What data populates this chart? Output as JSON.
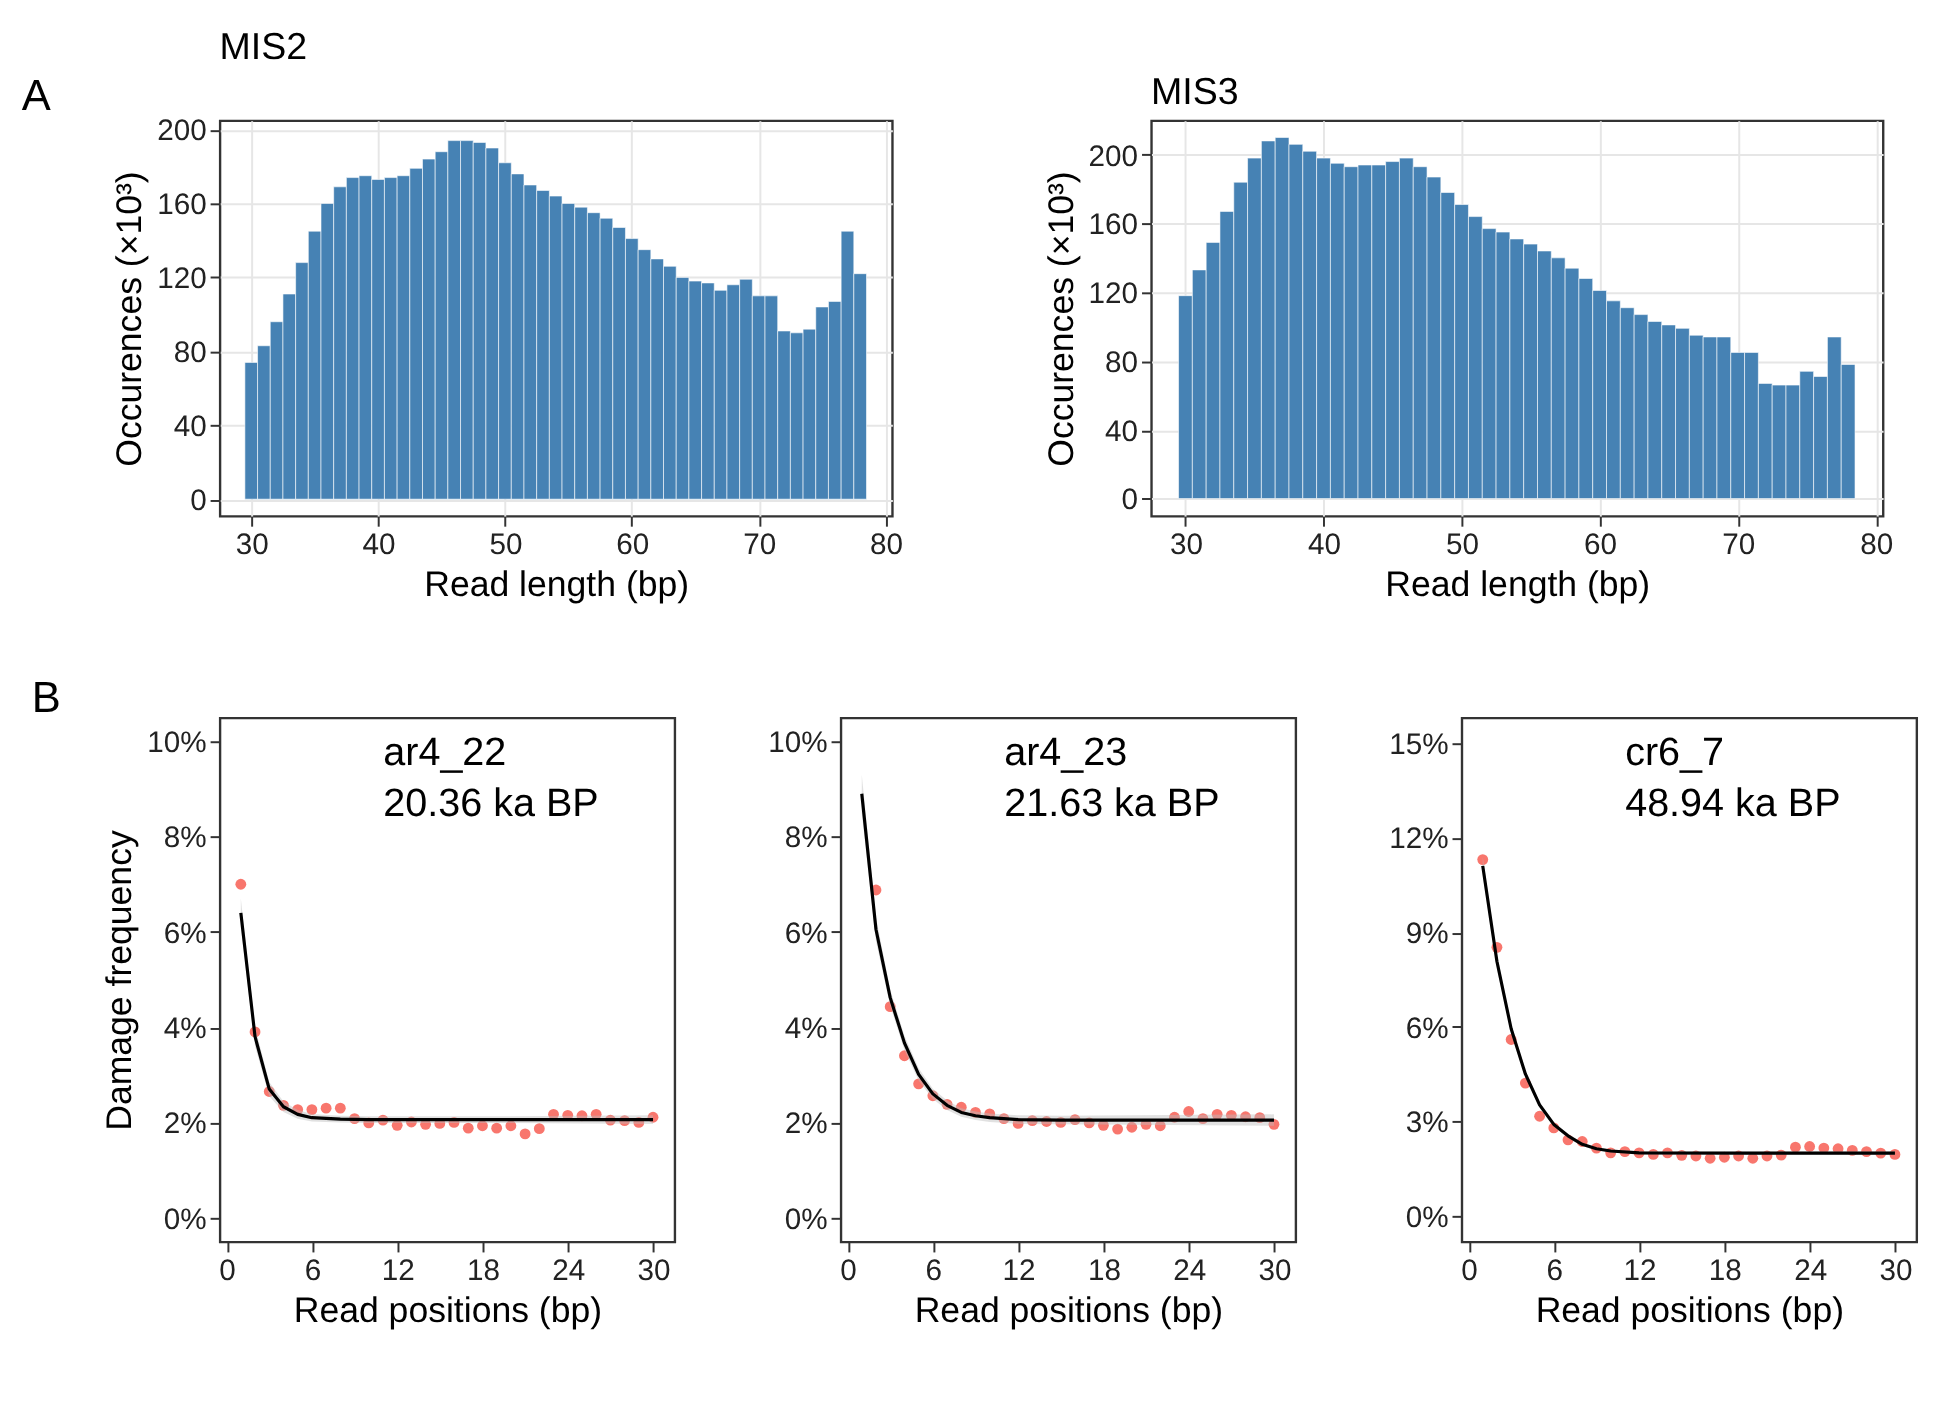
{
  "chart_data": [
    {
      "type": "histogram",
      "title": "MIS2",
      "xlabel": "Read length (bp)",
      "ylabel": "Occurences (×10³)",
      "annotations": [
        "A"
      ],
      "color": "#4682b4",
      "bins": [
        29.5,
        30.5,
        31.5,
        32.5,
        33.5,
        34.5,
        35.5,
        36.5,
        37.5,
        38.5,
        39.5,
        40.5,
        41.5,
        42.5,
        43.5,
        44.5,
        45.5,
        46.5,
        47.5,
        48.5,
        49.5,
        50.5,
        51.5,
        52.5,
        53.5,
        54.5,
        55.5,
        56.5,
        57.5,
        58.5,
        59.5,
        60.5,
        61.5,
        62.5,
        63.5,
        64.5,
        65.5,
        66.5,
        67.5,
        68.5,
        69.5,
        70.5,
        71.5,
        72.5,
        73.5,
        74.5,
        75.5,
        76.5,
        77.5,
        78.5
      ],
      "values": [
        74,
        83,
        96,
        111,
        128,
        145,
        160,
        169,
        174,
        175,
        173,
        174,
        175,
        179,
        184,
        188,
        194,
        194,
        193,
        190,
        182,
        176,
        170,
        167,
        164,
        160,
        158,
        155,
        152,
        147,
        141,
        135,
        130,
        126,
        120,
        118,
        117,
        113,
        116,
        119,
        110,
        110,
        91,
        90,
        92,
        104,
        107,
        145,
        122
      ],
      "xlim": [
        27.5,
        80.5
      ],
      "xticks": [
        30,
        40,
        50,
        60,
        70,
        80
      ],
      "ylim": [
        -9,
        205
      ],
      "yticks": [
        0,
        40,
        80,
        120,
        160,
        200
      ],
      "grid": true
    },
    {
      "type": "histogram",
      "title": "MIS3",
      "xlabel": "Read length (bp)",
      "ylabel": "Occurences (×10³)",
      "color": "#4682b4",
      "bins": [
        29.5,
        30.5,
        31.5,
        32.5,
        33.5,
        34.5,
        35.5,
        36.5,
        37.5,
        38.5,
        39.5,
        40.5,
        41.5,
        42.5,
        43.5,
        44.5,
        45.5,
        46.5,
        47.5,
        48.5,
        49.5,
        50.5,
        51.5,
        52.5,
        53.5,
        54.5,
        55.5,
        56.5,
        57.5,
        58.5,
        59.5,
        60.5,
        61.5,
        62.5,
        63.5,
        64.5,
        65.5,
        66.5,
        67.5,
        68.5,
        69.5,
        70.5,
        71.5,
        72.5,
        73.5,
        74.5,
        75.5,
        76.5,
        77.5,
        78.5
      ],
      "values": [
        118,
        133,
        149,
        167,
        184,
        198,
        208,
        210,
        206,
        202,
        198,
        195,
        193,
        194,
        194,
        196,
        198,
        193,
        187,
        178,
        171,
        164,
        157,
        155,
        151,
        148,
        144,
        140,
        134,
        128,
        121,
        115,
        111,
        107,
        103,
        101,
        99,
        95,
        94,
        94,
        85,
        85,
        67,
        66,
        66,
        74,
        71,
        94,
        78
      ],
      "xlim": [
        27.5,
        80.5
      ],
      "xticks": [
        30,
        40,
        50,
        60,
        70,
        80
      ],
      "ylim": [
        -10,
        220
      ],
      "yticks": [
        0,
        40,
        80,
        120,
        160,
        200
      ],
      "grid": true
    },
    {
      "type": "scatter",
      "xlabel": "Read positions (bp)",
      "ylabel": "Damage frequency",
      "annotations": [
        "B",
        "ar4_22",
        "20.36 ka BP"
      ],
      "grid": false,
      "series": [
        {
          "color": "#f8766d",
          "marker": "circle",
          "x": [
            1,
            2,
            3,
            4,
            5,
            6,
            7,
            8,
            9,
            10,
            11,
            12,
            13,
            14,
            15,
            16,
            17,
            18,
            19,
            20,
            21,
            22,
            23,
            24,
            25,
            26,
            27,
            28,
            29,
            30
          ],
          "values": [
            7.0,
            3.9,
            2.65,
            2.36,
            2.27,
            2.27,
            2.3,
            2.3,
            2.08,
            1.99,
            2.05,
            1.94,
            2.01,
            1.96,
            1.98,
            2.0,
            1.88,
            1.93,
            1.88,
            1.93,
            1.76,
            1.87,
            2.17,
            2.15,
            2.14,
            2.17,
            2.05,
            2.04,
            2.0,
            2.11
          ]
        },
        {
          "type": "line",
          "color": "#000000",
          "line_style": "solid",
          "x": [
            1,
            2,
            3,
            4,
            5,
            6,
            8,
            10,
            15,
            20,
            25,
            30
          ],
          "values": [
            6.4,
            3.8,
            2.7,
            2.33,
            2.17,
            2.1,
            2.07,
            2.06,
            2.06,
            2.06,
            2.06,
            2.06
          ],
          "lower": [
            6.1,
            3.6,
            2.55,
            2.22,
            2.08,
            2.02,
            2.0,
            1.99,
            1.99,
            1.99,
            1.98,
            1.97
          ],
          "upper": [
            6.7,
            4.0,
            2.85,
            2.44,
            2.26,
            2.18,
            2.14,
            2.13,
            2.13,
            2.13,
            2.14,
            2.15
          ]
        }
      ],
      "xlim": [
        -0.5,
        31.5
      ],
      "xticks": [
        0,
        6,
        12,
        18,
        24,
        30
      ],
      "ylim": [
        -0.5,
        10.5
      ],
      "yticks": [
        {
          "value": 0,
          "label": "0%"
        },
        {
          "value": 2,
          "label": "2%"
        },
        {
          "value": 4,
          "label": "4%"
        },
        {
          "value": 6,
          "label": "6%"
        },
        {
          "value": 8,
          "label": "8%"
        },
        {
          "value": 10,
          "label": "10%"
        }
      ]
    },
    {
      "type": "scatter",
      "xlabel": "Read positions (bp)",
      "annotations": [
        "ar4_23",
        "21.63 ka BP"
      ],
      "grid": false,
      "series": [
        {
          "color": "#f8766d",
          "marker": "circle",
          "x": [
            2,
            3,
            4,
            5,
            6,
            7,
            8,
            9,
            10,
            11,
            12,
            13,
            14,
            15,
            16,
            17,
            18,
            19,
            20,
            21,
            22,
            23,
            24,
            25,
            26,
            27,
            28,
            29,
            30
          ],
          "values": [
            6.88,
            4.43,
            3.4,
            2.81,
            2.56,
            2.38,
            2.32,
            2.21,
            2.18,
            2.08,
            1.98,
            2.04,
            2.02,
            2.0,
            2.06,
            1.99,
            1.94,
            1.86,
            1.9,
            1.96,
            1.93,
            2.11,
            2.23,
            2.08,
            2.17,
            2.15,
            2.12,
            2.1,
            1.96
          ]
        },
        {
          "type": "line",
          "color": "#000000",
          "line_style": "solid",
          "x": [
            1,
            2,
            3,
            4,
            5,
            6,
            7,
            8,
            9,
            10,
            12,
            15,
            20,
            25,
            30
          ],
          "values": [
            8.9,
            6.05,
            4.62,
            3.67,
            3.01,
            2.6,
            2.36,
            2.21,
            2.14,
            2.1,
            2.06,
            2.05,
            2.05,
            2.05,
            2.05
          ],
          "lower": [
            8.5,
            5.8,
            4.45,
            3.52,
            2.88,
            2.49,
            2.26,
            2.12,
            2.05,
            2.01,
            1.97,
            1.96,
            1.95,
            1.94,
            1.93
          ],
          "upper": [
            9.3,
            6.3,
            4.79,
            3.82,
            3.14,
            2.71,
            2.46,
            2.3,
            2.23,
            2.19,
            2.15,
            2.14,
            2.15,
            2.16,
            2.17
          ]
        }
      ],
      "xlim": [
        -0.5,
        31.5
      ],
      "xticks": [
        0,
        6,
        12,
        18,
        24,
        30
      ],
      "ylim": [
        -0.5,
        10.5
      ],
      "yticks": [
        {
          "value": 0,
          "label": "0%"
        },
        {
          "value": 2,
          "label": "2%"
        },
        {
          "value": 4,
          "label": "4%"
        },
        {
          "value": 6,
          "label": "6%"
        },
        {
          "value": 8,
          "label": "8%"
        },
        {
          "value": 10,
          "label": "10%"
        }
      ]
    },
    {
      "type": "scatter",
      "xlabel": "Read positions (bp)",
      "annotations": [
        "cr6_7",
        "48.94 ka BP"
      ],
      "grid": false,
      "series": [
        {
          "color": "#f8766d",
          "marker": "circle",
          "x": [
            1,
            2,
            3,
            4,
            5,
            6,
            7,
            8,
            9,
            10,
            11,
            12,
            13,
            14,
            15,
            16,
            17,
            18,
            19,
            20,
            21,
            22,
            23,
            24,
            25,
            26,
            27,
            28,
            29,
            30
          ],
          "values": [
            11.3,
            8.52,
            5.6,
            4.22,
            3.17,
            2.8,
            2.42,
            2.37,
            2.16,
            2.01,
            2.05,
            2.01,
            1.96,
            2.01,
            1.93,
            1.91,
            1.84,
            1.87,
            1.91,
            1.84,
            1.91,
            1.94,
            2.19,
            2.21,
            2.16,
            2.14,
            2.09,
            2.05,
            2.0,
            1.96
          ]
        },
        {
          "type": "line",
          "color": "#000000",
          "line_style": "solid",
          "x": [
            1,
            2,
            3,
            4,
            5,
            6,
            7,
            8,
            9,
            10,
            12,
            20,
            30
          ],
          "values": [
            11.1,
            8.07,
            5.94,
            4.51,
            3.53,
            2.91,
            2.55,
            2.28,
            2.14,
            2.07,
            2.01,
            2.0,
            2.0
          ],
          "lower": [
            10.8,
            7.85,
            5.8,
            4.4,
            3.45,
            2.84,
            2.49,
            2.23,
            2.09,
            2.02,
            1.96,
            1.95,
            1.94
          ],
          "upper": [
            11.4,
            8.3,
            6.08,
            4.62,
            3.61,
            2.98,
            2.61,
            2.33,
            2.19,
            2.12,
            2.06,
            2.05,
            2.06
          ]
        }
      ],
      "xlim": [
        -0.5,
        31.5
      ],
      "xticks": [
        0,
        6,
        12,
        18,
        24,
        30
      ],
      "ylim": [
        -0.8,
        15.8
      ],
      "yticks": [
        {
          "value": 0,
          "label": "0%"
        },
        {
          "value": 3,
          "label": "3%"
        },
        {
          "value": 6,
          "label": "6%"
        },
        {
          "value": 9,
          "label": "9%"
        },
        {
          "value": 12,
          "label": "12%"
        },
        {
          "value": 15,
          "label": "15%"
        }
      ]
    }
  ]
}
